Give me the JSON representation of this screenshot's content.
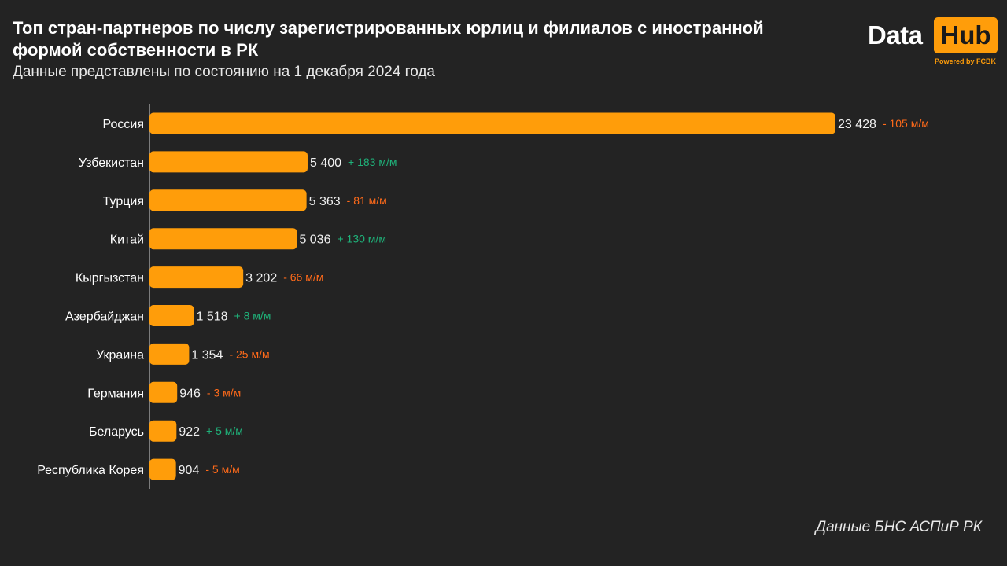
{
  "header": {
    "title": "Топ стран-партнеров по числу зарегистрированных юрлиц и филиалов с иностранной формой собственности в РК",
    "subtitle": "Данные представлены по состоянию на 1 декабря 2024 года"
  },
  "logo": {
    "data_text": "Data",
    "hub_text": "Hub",
    "powered_text": "Powered by FCBK",
    "accent_color": "#ff9d0a"
  },
  "footer": {
    "source": "Данные БНС АСПиР РК"
  },
  "colors": {
    "bar": "#ff9d0a",
    "positive": "#1fb27a",
    "negative": "#ff6a1a",
    "value_text": "#f0f0f0",
    "category_text": "#ffffff"
  },
  "chart_data": {
    "type": "bar",
    "orientation": "horizontal",
    "categories": [
      "Россия",
      "Узбекистан",
      "Турция",
      "Китай",
      "Кыргызстан",
      "Азербайджан",
      "Украина",
      "Германия",
      "Беларусь",
      "Республика Корея"
    ],
    "values": [
      23428,
      5400,
      5363,
      5036,
      3202,
      1518,
      1354,
      946,
      922,
      904
    ],
    "value_labels": [
      "23 428",
      "5 400",
      "5 363",
      "5 036",
      "3 202",
      "1 518",
      "1 354",
      "946",
      "922",
      "904"
    ],
    "changes": [
      -105,
      183,
      -81,
      130,
      -66,
      8,
      -25,
      -3,
      5,
      -5
    ],
    "change_labels": [
      "- 105 м/м",
      "+ 183 м/м",
      "- 81 м/м",
      "+ 130 м/м",
      "- 66 м/м",
      "+ 8 м/м",
      "- 25 м/м",
      "- 3 м/м",
      "+ 5 м/м",
      "- 5 м/м"
    ],
    "xlim": [
      0,
      23428
    ],
    "grid": false,
    "legend": "none"
  }
}
